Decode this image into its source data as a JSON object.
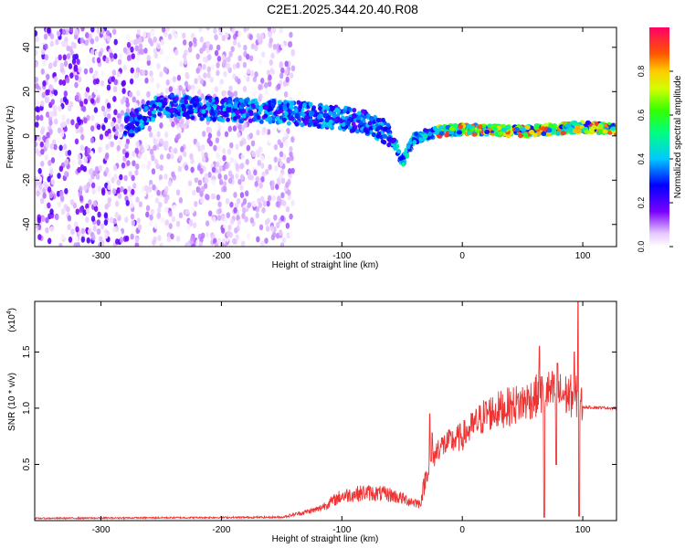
{
  "page_title": "C2E1.2025.344.20.40.R08",
  "chart_data": [
    {
      "type": "heatmap",
      "xlabel": "Height of straight line (km)",
      "ylabel": "Frequency (Hz)",
      "xlim": [
        -355,
        128
      ],
      "ylim": [
        -50,
        49
      ],
      "xticks": [
        -300,
        -200,
        -100,
        0,
        100
      ],
      "yticks": [
        -40,
        -20,
        0,
        20,
        40
      ],
      "colorbar": {
        "label": "Normalized spectral amplitude",
        "range": [
          0,
          1
        ],
        "ticks": [
          0.0,
          0.2,
          0.4,
          0.6,
          0.8
        ],
        "tick_labels": [
          "0.0",
          "0.2",
          "0.4",
          "0.6",
          "0.8"
        ]
      },
      "ridge": [
        {
          "x": -275,
          "y": 5
        },
        {
          "x": -250,
          "y": 14
        },
        {
          "x": -200,
          "y": 12
        },
        {
          "x": -150,
          "y": 11
        },
        {
          "x": -100,
          "y": 8
        },
        {
          "x": -80,
          "y": 6
        },
        {
          "x": -65,
          "y": 2
        },
        {
          "x": -55,
          "y": -4
        },
        {
          "x": -50,
          "y": -12
        },
        {
          "x": -40,
          "y": -1
        },
        {
          "x": -20,
          "y": 2
        },
        {
          "x": 0,
          "y": 3
        },
        {
          "x": 50,
          "y": 2
        },
        {
          "x": 100,
          "y": 4
        },
        {
          "x": 128,
          "y": 3
        }
      ]
    },
    {
      "type": "line",
      "xlabel": "Height of straight line (km)",
      "ylabel": "SNR (10 * v/v)",
      "exponent_label": "(x10",
      "exponent_power": "4",
      "exponent_close": ")",
      "xlim": [
        -355,
        128
      ],
      "ylim": [
        0,
        19500
      ],
      "xticks": [
        -300,
        -200,
        -100,
        0,
        100
      ],
      "yticks": [
        5000,
        10000,
        15000
      ],
      "ytick_labels": [
        "0.5",
        "1.0",
        "1.5"
      ],
      "color": "#ee3333",
      "envelope": [
        {
          "x": -355,
          "y": 200
        },
        {
          "x": -150,
          "y": 300
        },
        {
          "x": -120,
          "y": 1000
        },
        {
          "x": -100,
          "y": 2200
        },
        {
          "x": -80,
          "y": 2500
        },
        {
          "x": -60,
          "y": 2300
        },
        {
          "x": -45,
          "y": 1800
        },
        {
          "x": -35,
          "y": 1500
        },
        {
          "x": -30,
          "y": 4000
        },
        {
          "x": -20,
          "y": 6500
        },
        {
          "x": 0,
          "y": 7500
        },
        {
          "x": 20,
          "y": 9500
        },
        {
          "x": 50,
          "y": 10500
        },
        {
          "x": 70,
          "y": 11500
        },
        {
          "x": 95,
          "y": 11000
        },
        {
          "x": 100,
          "y": 10100
        },
        {
          "x": 128,
          "y": 10000
        }
      ],
      "spikes": [
        {
          "x": 96,
          "y": 19500
        },
        {
          "x": 93,
          "y": 15000
        },
        {
          "x": 64,
          "y": 15500
        },
        {
          "x": 79,
          "y": 14000
        },
        {
          "x": -27,
          "y": 9500
        },
        {
          "x": -25,
          "y": 7800
        }
      ],
      "dips": [
        {
          "x": 68,
          "y": 300
        },
        {
          "x": 97,
          "y": 400
        },
        {
          "x": 78,
          "y": 5000
        }
      ]
    }
  ]
}
